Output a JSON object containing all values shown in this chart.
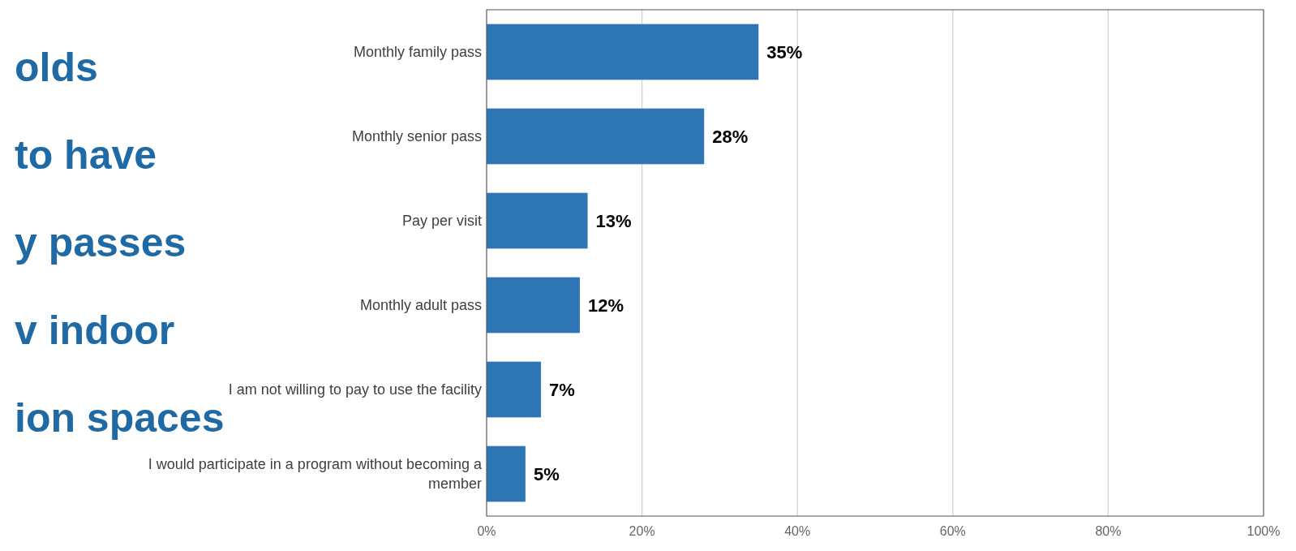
{
  "chart_data": {
    "type": "bar",
    "orientation": "horizontal",
    "categories": [
      "Monthly family pass",
      "Monthly senior pass",
      "Pay per visit",
      "Monthly adult pass",
      "I am not willing to pay to use the facility",
      "I would participate in a program without becoming a member"
    ],
    "values": [
      35,
      28,
      13,
      12,
      7,
      5
    ],
    "value_labels": [
      "35%",
      "28%",
      "13%",
      "12%",
      "7%",
      "5%"
    ],
    "color": "#2e75b6",
    "xlim": [
      0,
      100
    ],
    "xticks": [
      {
        "value": 0,
        "label": "0%"
      },
      {
        "value": 20,
        "label": "20%"
      },
      {
        "value": 40,
        "label": "40%"
      },
      {
        "value": 60,
        "label": "60%"
      },
      {
        "value": 80,
        "label": "80%"
      },
      {
        "value": 100,
        "label": "100%"
      }
    ],
    "grid": "x",
    "annotations": [
      "olds",
      "to have",
      "y passes",
      "v indoor",
      "ion spaces"
    ]
  }
}
